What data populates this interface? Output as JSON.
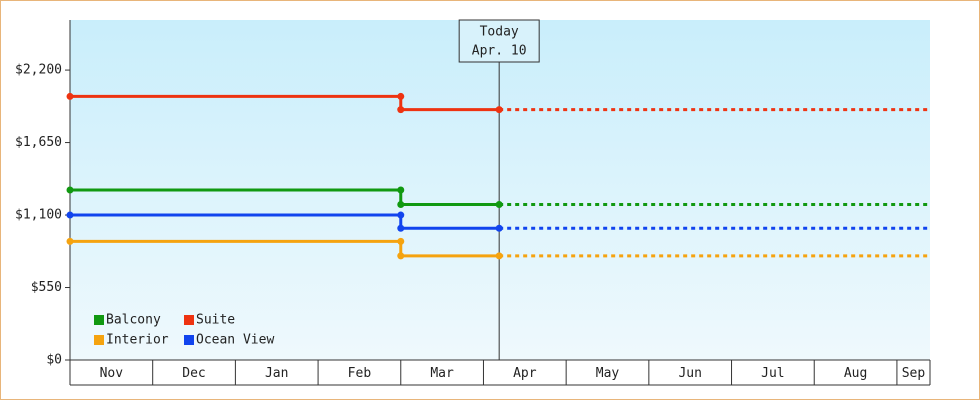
{
  "chart_data": {
    "type": "step-line",
    "xlim": [
      0,
      10.4
    ],
    "xticks": [
      {
        "value": 0,
        "label": "Nov"
      },
      {
        "value": 1,
        "label": "Dec"
      },
      {
        "value": 2,
        "label": "Jan"
      },
      {
        "value": 3,
        "label": "Feb"
      },
      {
        "value": 4,
        "label": "Mar"
      },
      {
        "value": 5,
        "label": "Apr"
      },
      {
        "value": 6,
        "label": "May"
      },
      {
        "value": 7,
        "label": "Jun"
      },
      {
        "value": 8,
        "label": "Jul"
      },
      {
        "value": 9,
        "label": "Aug"
      },
      {
        "value": 10,
        "label": "Sep"
      }
    ],
    "ylim": [
      0,
      2580
    ],
    "yticks": [
      {
        "value": 0,
        "label": "$0"
      },
      {
        "value": 550,
        "label": "$550"
      },
      {
        "value": 1100,
        "label": "$1,100"
      },
      {
        "value": 1650,
        "label": "$1,650"
      },
      {
        "value": 2200,
        "label": "$2,200"
      }
    ],
    "today": {
      "x": 5.19,
      "label": [
        "Today",
        "Apr. 10"
      ]
    },
    "legend": "bottom-left",
    "series": [
      {
        "name": "Balcony",
        "color": "#119911",
        "x": [
          0,
          4,
          4,
          5.19
        ],
        "values": [
          1290,
          1290,
          1180,
          1180
        ]
      },
      {
        "name": "Suite",
        "color": "#ee3311",
        "x": [
          0,
          4,
          4,
          5.19
        ],
        "values": [
          2000,
          2000,
          1900,
          1900
        ]
      },
      {
        "name": "Interior",
        "color": "#f5a30f",
        "x": [
          0,
          4,
          4,
          5.19
        ],
        "values": [
          900,
          900,
          790,
          790
        ]
      },
      {
        "name": "Ocean View",
        "color": "#1144ee",
        "x": [
          0,
          4,
          4,
          5.19
        ],
        "values": [
          1100,
          1100,
          1000,
          1000
        ]
      }
    ]
  }
}
